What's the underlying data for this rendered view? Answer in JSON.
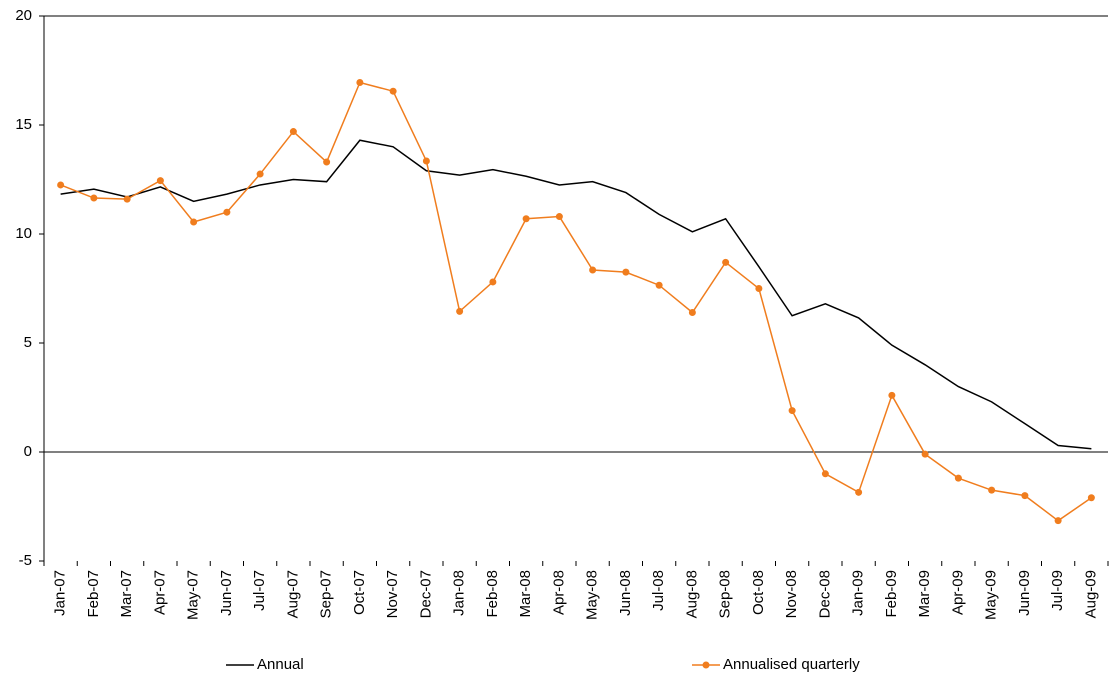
{
  "chart_data": {
    "type": "line",
    "categories": [
      "Jan-07",
      "Feb-07",
      "Mar-07",
      "Apr-07",
      "May-07",
      "Jun-07",
      "Jul-07",
      "Aug-07",
      "Sep-07",
      "Oct-07",
      "Nov-07",
      "Dec-07",
      "Jan-08",
      "Feb-08",
      "Mar-08",
      "Apr-08",
      "May-08",
      "Jun-08",
      "Jul-08",
      "Aug-08",
      "Sep-08",
      "Oct-08",
      "Nov-08",
      "Dec-08",
      "Jan-09",
      "Feb-09",
      "Mar-09",
      "Apr-09",
      "May-09",
      "Jun-09",
      "Jul-09",
      "Aug-09"
    ],
    "series": [
      {
        "name": "Annual",
        "color": "#000000",
        "marker": false,
        "values": [
          11.83,
          12.06,
          11.7,
          12.16,
          11.5,
          11.83,
          12.25,
          12.5,
          12.4,
          14.3,
          14.0,
          12.9,
          12.7,
          12.95,
          12.65,
          12.25,
          12.4,
          11.9,
          10.9,
          10.1,
          10.7,
          8.5,
          6.25,
          6.8,
          6.15,
          4.9,
          4.0,
          3.0,
          2.3,
          1.3,
          0.3,
          0.15
        ]
      },
      {
        "name": "Annualised quarterly",
        "color": "#f07d1e",
        "marker": true,
        "values": [
          12.25,
          11.65,
          11.6,
          12.45,
          10.55,
          11.0,
          12.75,
          14.7,
          13.3,
          16.95,
          16.55,
          13.35,
          6.45,
          7.8,
          10.7,
          10.8,
          8.35,
          8.25,
          7.65,
          6.4,
          8.7,
          7.5,
          1.9,
          -1.0,
          -1.85,
          2.6,
          -0.1,
          -1.2,
          -1.75,
          -2.0,
          -3.15,
          -2.1
        ]
      }
    ],
    "ylim": [
      -5,
      20
    ],
    "yticks": [
      -5,
      0,
      5,
      10,
      15,
      20
    ],
    "grid": false,
    "legend": "bottom"
  }
}
